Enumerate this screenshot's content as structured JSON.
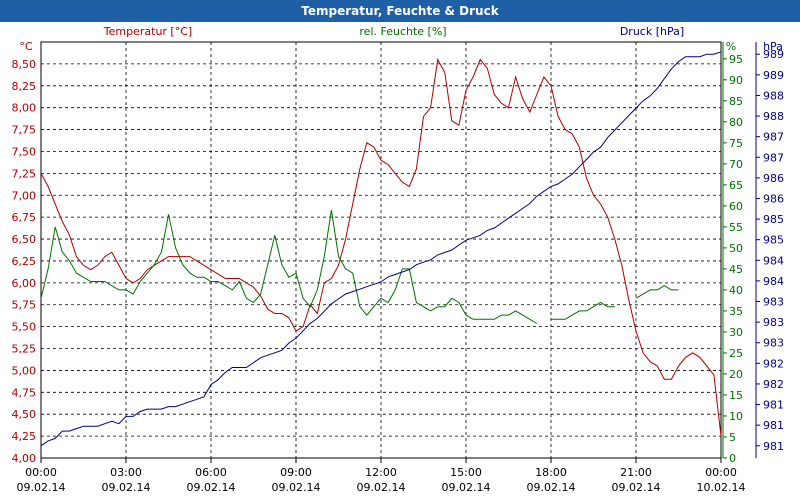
{
  "window": {
    "title": "Temperatur, Feuchte & Druck"
  },
  "colors": {
    "temperature": "#b00000",
    "humidity": "#007000",
    "pressure": "#00008b",
    "titlebar": "#1f5fa6"
  },
  "chart_data": {
    "type": "line",
    "title": "Temperatur, Feuchte & Druck",
    "xlabel": "",
    "x_range_hours": [
      0,
      24
    ],
    "x_ticks": [
      {
        "time": "00:00",
        "date": "09.02.14"
      },
      {
        "time": "03:00",
        "date": "09.02.14"
      },
      {
        "time": "06:00",
        "date": "09.02.14"
      },
      {
        "time": "09:00",
        "date": "09.02.14"
      },
      {
        "time": "12:00",
        "date": "09.02.14"
      },
      {
        "time": "15:00",
        "date": "09.02.14"
      },
      {
        "time": "18:00",
        "date": "09.02.14"
      },
      {
        "time": "21:00",
        "date": "09.02.14"
      },
      {
        "time": "00:00",
        "date": "10.02.14"
      }
    ],
    "axes": {
      "temperature": {
        "unit": "°C",
        "ylim": [
          4.0,
          8.75
        ],
        "ticks": [
          "4,00",
          "4,25",
          "4,50",
          "4,75",
          "5,00",
          "5,25",
          "5,50",
          "5,75",
          "6,00",
          "6,25",
          "6,50",
          "6,75",
          "7,00",
          "7,25",
          "7,50",
          "7,75",
          "8,00",
          "8,25",
          "8,50"
        ]
      },
      "humidity": {
        "unit": "%",
        "ylim": [
          0,
          99
        ],
        "ticks": [
          "0",
          "5",
          "10",
          "15",
          "20",
          "25",
          "30",
          "35",
          "40",
          "45",
          "50",
          "55",
          "60",
          "65",
          "70",
          "75",
          "80",
          "85",
          "90",
          "95"
        ]
      },
      "pressure": {
        "unit": "hPa",
        "ylim": [
          980.75,
          989.25
        ],
        "ticks": [
          "981",
          "981",
          "981",
          "982",
          "982",
          "983",
          "983",
          "983",
          "984",
          "984",
          "985",
          "985",
          "986",
          "986",
          "987",
          "987",
          "988",
          "988",
          "989",
          "989"
        ]
      }
    },
    "series": [
      {
        "name": "Temperatur [°C]",
        "axis": "temperature",
        "points": [
          [
            0,
            7.25
          ],
          [
            0.25,
            7.1
          ],
          [
            0.5,
            6.9
          ],
          [
            0.75,
            6.7
          ],
          [
            1,
            6.55
          ],
          [
            1.25,
            6.3
          ],
          [
            1.5,
            6.2
          ],
          [
            1.75,
            6.15
          ],
          [
            2,
            6.2
          ],
          [
            2.25,
            6.3
          ],
          [
            2.5,
            6.35
          ],
          [
            2.75,
            6.2
          ],
          [
            3,
            6.05
          ],
          [
            3.25,
            6.0
          ],
          [
            3.5,
            6.05
          ],
          [
            3.75,
            6.15
          ],
          [
            4,
            6.2
          ],
          [
            4.25,
            6.25
          ],
          [
            4.5,
            6.3
          ],
          [
            4.75,
            6.3
          ],
          [
            5,
            6.3
          ],
          [
            5.25,
            6.3
          ],
          [
            5.5,
            6.25
          ],
          [
            5.75,
            6.2
          ],
          [
            6,
            6.15
          ],
          [
            6.25,
            6.1
          ],
          [
            6.5,
            6.05
          ],
          [
            6.75,
            6.05
          ],
          [
            7,
            6.05
          ],
          [
            7.25,
            6.0
          ],
          [
            7.5,
            5.95
          ],
          [
            7.75,
            5.85
          ],
          [
            8,
            5.7
          ],
          [
            8.25,
            5.65
          ],
          [
            8.5,
            5.65
          ],
          [
            8.75,
            5.6
          ],
          [
            9,
            5.45
          ],
          [
            9.25,
            5.5
          ],
          [
            9.5,
            5.75
          ],
          [
            9.75,
            5.65
          ],
          [
            10,
            6.0
          ],
          [
            10.25,
            6.05
          ],
          [
            10.5,
            6.2
          ],
          [
            10.75,
            6.5
          ],
          [
            11,
            6.9
          ],
          [
            11.25,
            7.3
          ],
          [
            11.5,
            7.6
          ],
          [
            11.75,
            7.55
          ],
          [
            12,
            7.4
          ],
          [
            12.25,
            7.35
          ],
          [
            12.5,
            7.25
          ],
          [
            12.75,
            7.15
          ],
          [
            13,
            7.1
          ],
          [
            13.25,
            7.3
          ],
          [
            13.5,
            7.9
          ],
          [
            13.75,
            8.0
          ],
          [
            14,
            8.55
          ],
          [
            14.25,
            8.4
          ],
          [
            14.5,
            7.85
          ],
          [
            14.75,
            7.8
          ],
          [
            15,
            8.2
          ],
          [
            15.25,
            8.35
          ],
          [
            15.5,
            8.55
          ],
          [
            15.75,
            8.45
          ],
          [
            16,
            8.15
          ],
          [
            16.25,
            8.05
          ],
          [
            16.5,
            8.0
          ],
          [
            16.75,
            8.35
          ],
          [
            17,
            8.1
          ],
          [
            17.25,
            7.95
          ],
          [
            17.5,
            8.15
          ],
          [
            17.75,
            8.35
          ],
          [
            18,
            8.25
          ],
          [
            18.25,
            7.9
          ],
          [
            18.5,
            7.75
          ],
          [
            18.75,
            7.7
          ],
          [
            19,
            7.55
          ],
          [
            19.25,
            7.2
          ],
          [
            19.5,
            7.0
          ],
          [
            19.75,
            6.9
          ],
          [
            20,
            6.75
          ],
          [
            20.25,
            6.5
          ],
          [
            20.5,
            6.2
          ],
          [
            20.75,
            5.8
          ],
          [
            21,
            5.45
          ],
          [
            21.25,
            5.2
          ],
          [
            21.5,
            5.1
          ],
          [
            21.75,
            5.05
          ],
          [
            22,
            4.9
          ],
          [
            22.25,
            4.9
          ],
          [
            22.5,
            5.05
          ],
          [
            22.75,
            5.15
          ],
          [
            23,
            5.2
          ],
          [
            23.25,
            5.15
          ],
          [
            23.5,
            5.05
          ],
          [
            23.75,
            4.95
          ],
          [
            24,
            4.25
          ]
        ]
      },
      {
        "name": "rel. Feuchte [%]",
        "axis": "humidity",
        "points": [
          [
            0,
            38
          ],
          [
            0.25,
            45
          ],
          [
            0.5,
            55
          ],
          [
            0.75,
            49
          ],
          [
            1,
            47
          ],
          [
            1.25,
            44
          ],
          [
            1.5,
            43
          ],
          [
            1.75,
            42
          ],
          [
            2,
            42
          ],
          [
            2.25,
            42
          ],
          [
            2.5,
            41
          ],
          [
            2.75,
            40
          ],
          [
            3,
            40
          ],
          [
            3.25,
            39
          ],
          [
            3.5,
            42
          ],
          [
            3.75,
            44
          ],
          [
            4,
            46
          ],
          [
            4.25,
            49
          ],
          [
            4.5,
            58
          ],
          [
            4.75,
            50
          ],
          [
            5,
            46
          ],
          [
            5.25,
            44
          ],
          [
            5.5,
            43
          ],
          [
            5.75,
            43
          ],
          [
            6,
            42
          ],
          [
            6.25,
            42
          ],
          [
            6.5,
            41
          ],
          [
            6.75,
            40
          ],
          [
            7,
            42
          ],
          [
            7.25,
            38
          ],
          [
            7.5,
            37
          ],
          [
            7.75,
            39
          ],
          [
            8,
            46
          ],
          [
            8.25,
            53
          ],
          [
            8.5,
            46
          ],
          [
            8.75,
            43
          ],
          [
            9,
            44
          ],
          [
            9.25,
            38
          ],
          [
            9.5,
            36
          ],
          [
            9.75,
            40
          ],
          [
            10,
            48
          ],
          [
            10.25,
            59
          ],
          [
            10.5,
            48
          ],
          [
            10.75,
            45
          ],
          [
            11,
            44
          ],
          [
            11.25,
            36
          ],
          [
            11.5,
            34
          ],
          [
            11.75,
            36
          ],
          [
            12,
            38
          ],
          [
            12.25,
            37
          ],
          [
            12.5,
            40
          ],
          [
            12.75,
            45
          ],
          [
            13,
            45
          ],
          [
            13.25,
            37
          ],
          [
            13.5,
            36
          ],
          [
            13.75,
            35
          ],
          [
            14,
            36
          ],
          [
            14.25,
            36
          ],
          [
            14.5,
            38
          ],
          [
            14.75,
            37
          ],
          [
            15,
            34
          ],
          [
            15.25,
            33
          ],
          [
            15.5,
            33
          ],
          [
            15.75,
            33
          ],
          [
            16,
            33
          ],
          [
            16.25,
            34
          ],
          [
            16.5,
            34
          ],
          [
            16.75,
            35
          ],
          [
            17,
            34
          ],
          [
            17.25,
            33
          ],
          [
            17.5,
            32
          ],
          [
            17.75,
            null
          ],
          [
            18,
            33
          ],
          [
            18.25,
            33
          ],
          [
            18.5,
            33
          ],
          [
            18.75,
            34
          ],
          [
            19,
            35
          ],
          [
            19.25,
            35
          ],
          [
            19.5,
            36
          ],
          [
            19.75,
            37
          ],
          [
            20,
            36
          ],
          [
            20.25,
            36
          ],
          [
            20.5,
            null
          ],
          [
            20.75,
            null
          ],
          [
            21,
            38
          ],
          [
            21.25,
            39
          ],
          [
            21.5,
            40
          ],
          [
            21.75,
            40
          ],
          [
            22,
            41
          ],
          [
            22.25,
            40
          ],
          [
            22.5,
            40
          ]
        ]
      },
      {
        "name": "Druck [hPa]",
        "axis": "pressure",
        "points": [
          [
            0,
            981.0
          ],
          [
            0.25,
            981.1
          ],
          [
            0.5,
            981.15
          ],
          [
            0.75,
            981.3
          ],
          [
            1,
            981.3
          ],
          [
            1.25,
            981.35
          ],
          [
            1.5,
            981.4
          ],
          [
            1.75,
            981.4
          ],
          [
            2,
            981.4
          ],
          [
            2.25,
            981.45
          ],
          [
            2.5,
            981.5
          ],
          [
            2.75,
            981.45
          ],
          [
            3,
            981.6
          ],
          [
            3.25,
            981.6
          ],
          [
            3.5,
            981.7
          ],
          [
            3.75,
            981.75
          ],
          [
            4,
            981.75
          ],
          [
            4.25,
            981.75
          ],
          [
            4.5,
            981.8
          ],
          [
            4.75,
            981.8
          ],
          [
            5,
            981.85
          ],
          [
            5.25,
            981.9
          ],
          [
            5.5,
            981.95
          ],
          [
            5.75,
            982.0
          ],
          [
            6,
            982.25
          ],
          [
            6.25,
            982.35
          ],
          [
            6.5,
            982.5
          ],
          [
            6.75,
            982.6
          ],
          [
            7,
            982.6
          ],
          [
            7.25,
            982.6
          ],
          [
            7.5,
            982.7
          ],
          [
            7.75,
            982.8
          ],
          [
            8,
            982.85
          ],
          [
            8.25,
            982.9
          ],
          [
            8.5,
            982.95
          ],
          [
            8.75,
            983.1
          ],
          [
            9,
            983.2
          ],
          [
            9.25,
            983.35
          ],
          [
            9.5,
            983.5
          ],
          [
            9.75,
            983.6
          ],
          [
            10,
            983.75
          ],
          [
            10.25,
            983.9
          ],
          [
            10.5,
            984.0
          ],
          [
            10.75,
            984.1
          ],
          [
            11,
            984.15
          ],
          [
            11.25,
            984.2
          ],
          [
            11.5,
            984.25
          ],
          [
            11.75,
            984.3
          ],
          [
            12,
            984.35
          ],
          [
            12.25,
            984.45
          ],
          [
            12.5,
            984.5
          ],
          [
            12.75,
            984.55
          ],
          [
            13,
            984.6
          ],
          [
            13.25,
            984.7
          ],
          [
            13.5,
            984.75
          ],
          [
            13.75,
            984.8
          ],
          [
            14,
            984.9
          ],
          [
            14.25,
            984.95
          ],
          [
            14.5,
            985.0
          ],
          [
            14.75,
            985.1
          ],
          [
            15,
            985.2
          ],
          [
            15.25,
            985.25
          ],
          [
            15.5,
            985.3
          ],
          [
            15.75,
            985.4
          ],
          [
            16,
            985.45
          ],
          [
            16.25,
            985.55
          ],
          [
            16.5,
            985.65
          ],
          [
            16.75,
            985.75
          ],
          [
            17,
            985.85
          ],
          [
            17.25,
            985.95
          ],
          [
            17.5,
            986.1
          ],
          [
            17.75,
            986.2
          ],
          [
            18,
            986.3
          ],
          [
            18.25,
            986.35
          ],
          [
            18.5,
            986.45
          ],
          [
            18.75,
            986.55
          ],
          [
            19,
            986.7
          ],
          [
            19.25,
            986.85
          ],
          [
            19.5,
            987.0
          ],
          [
            19.75,
            987.1
          ],
          [
            20,
            987.3
          ],
          [
            20.25,
            987.45
          ],
          [
            20.5,
            987.6
          ],
          [
            20.75,
            987.75
          ],
          [
            21,
            987.9
          ],
          [
            21.25,
            988.05
          ],
          [
            21.5,
            988.15
          ],
          [
            21.75,
            988.3
          ],
          [
            22,
            988.5
          ],
          [
            22.25,
            988.7
          ],
          [
            22.5,
            988.85
          ],
          [
            22.75,
            988.95
          ],
          [
            23,
            988.95
          ],
          [
            23.25,
            988.95
          ],
          [
            23.5,
            989.0
          ],
          [
            23.75,
            989.0
          ],
          [
            24,
            989.05
          ]
        ]
      }
    ],
    "legend_placement": "top"
  }
}
